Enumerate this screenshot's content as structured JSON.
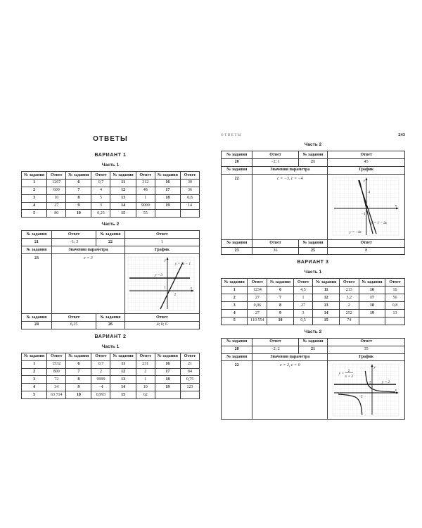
{
  "colors": {
    "ink": "#1b1b1b",
    "grid": "#c9c9c9",
    "line": "#111111"
  },
  "labels": {
    "task_no": "№ задания",
    "answer": "Ответ",
    "param_values": "Значения параметра",
    "graph": "График"
  },
  "left_page": {
    "title": "ОТВЕТЫ",
    "variant1_title": "ВАРИАНТ 1",
    "v1_part1_title": "Часть 1",
    "v1_part1": {
      "headers": [
        "№ задания",
        "Ответ",
        "№ задания",
        "Ответ",
        "№ задания",
        "Ответ",
        "№ задания",
        "Ответ"
      ],
      "rows": [
        [
          "1",
          "1267",
          "6",
          "0,7",
          "11",
          "312",
          "16",
          "30"
        ],
        [
          "2",
          "600",
          "7",
          "4",
          "12",
          "48",
          "17",
          "36"
        ],
        [
          "3",
          "10",
          "8",
          "5",
          "13",
          "1",
          "18",
          "0,8"
        ],
        [
          "4",
          "27",
          "9",
          "3",
          "14",
          "9000",
          "19",
          "14"
        ],
        [
          "5",
          "80",
          "10",
          "0,25",
          "15",
          "55",
          "",
          ""
        ]
      ]
    },
    "v1_part2_title": "Часть 2",
    "v1_part2": {
      "row1": [
        "21",
        "−1; 3",
        "22",
        "1"
      ],
      "param_num": "23",
      "param_value": "c = 3",
      "row2": [
        "24",
        "6,25",
        "26",
        "4; 6; 6"
      ],
      "graph": {
        "line_h": "y = 3",
        "line_eq": "y = 2x − 1",
        "tick_y": "1",
        "tick_x": "2",
        "axis_x": "x",
        "axis_y": "y"
      }
    },
    "variant2_title": "ВАРИАНТ 2",
    "v2_part1_title": "Часть 1",
    "v2_part1": {
      "headers": [
        "№ задания",
        "Ответ",
        "№ задания",
        "Ответ",
        "№ задания",
        "Ответ",
        "№ задания",
        "Ответ"
      ],
      "rows": [
        [
          "1",
          "1532",
          "6",
          "0,7",
          "11",
          "231",
          "16",
          "21"
        ],
        [
          "2",
          "800",
          "7",
          "2",
          "12",
          "2",
          "17",
          "84"
        ],
        [
          "3",
          "72",
          "8",
          "9999",
          "13",
          "1",
          "18",
          "0,75"
        ],
        [
          "4",
          "34",
          "9",
          "−4",
          "14",
          "10",
          "19",
          "123"
        ],
        [
          "5",
          "63 714",
          "10",
          "0,993",
          "15",
          "62",
          "",
          ""
        ]
      ]
    }
  },
  "right_page": {
    "running_title": "ОТВЕТЫ",
    "page_number": "243",
    "v2_part2_title": "Часть 2",
    "v2_part2": {
      "row1": [
        "20",
        "−2; 1",
        "21",
        "45"
      ],
      "param_num": "22",
      "param_value": "c = −3, c = −4",
      "row2": [
        "23",
        "36",
        "25",
        "8"
      ],
      "graph": {
        "eq1": "y = −4x",
        "eq2": "y = 1 − 3x",
        "tick_top": "4",
        "tick_bottom": "−1",
        "axis_x": "x",
        "axis_y": "y"
      }
    },
    "variant3_title": "ВАРИАНТ 3",
    "v3_part1_title": "Часть 1",
    "v3_part1": {
      "headers": [
        "№ задания",
        "Ответ",
        "№ задания",
        "Ответ",
        "№ задания",
        "Ответ",
        "№ задания",
        "Ответ"
      ],
      "rows": [
        [
          "1",
          "1234",
          "6",
          "4,5",
          "11",
          "213",
          "16",
          "16"
        ],
        [
          "2",
          "27",
          "7",
          "1",
          "12",
          "3,2",
          "17",
          "56"
        ],
        [
          "3",
          "0,06",
          "8",
          "27",
          "13",
          "2",
          "18",
          "0,8"
        ],
        [
          "4",
          "27",
          "9",
          "3",
          "14",
          "252",
          "19",
          "13"
        ],
        [
          "5",
          "110 554",
          "10",
          "0,5",
          "15",
          "74",
          "",
          ""
        ]
      ]
    },
    "v3_part2_title": "Часть 2",
    "v3_part2": {
      "row1": [
        "20",
        "−2; 2",
        "21",
        "35"
      ],
      "param_num": "22",
      "param_value": "c = 2, c = 0",
      "graph": {
        "frac_prefix": "y =",
        "frac_num": "2",
        "frac_den": "x + 2",
        "line_h": "y = 2",
        "tick_y": "2",
        "tick_x": "−2",
        "axis_x": "x",
        "axis_y": "y"
      }
    }
  }
}
